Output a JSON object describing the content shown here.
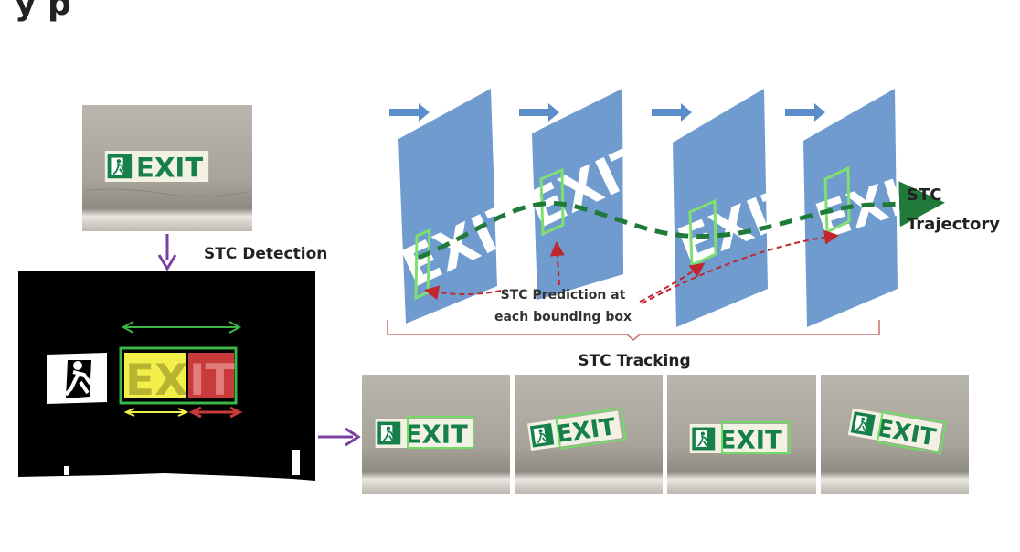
{
  "header": {
    "cropped_text": "y p"
  },
  "labels": {
    "detection": "STC Detection",
    "trajectory_line1": "STC",
    "trajectory_line2": "Trajectory",
    "prediction_line1": "STC Prediction at",
    "prediction_line2": "each bounding box",
    "tracking": "STC Tracking"
  },
  "sign_text": "EXIT",
  "binary_segments": [
    "EX",
    "IT"
  ],
  "colors": {
    "frame_blue": "#6f9bcf",
    "dashed_trajectory": "#1f7a3a",
    "prediction_arrow": "#c0262b",
    "flow_arrow": "#7b3fa0",
    "bbox_green": "#3cb54a",
    "sign_green": "#16804a",
    "seg_yellow": "#f2ee4a",
    "seg_red": "#c93b3b"
  },
  "icons": [
    "running-man-icon",
    "right-arrow-icon"
  ]
}
